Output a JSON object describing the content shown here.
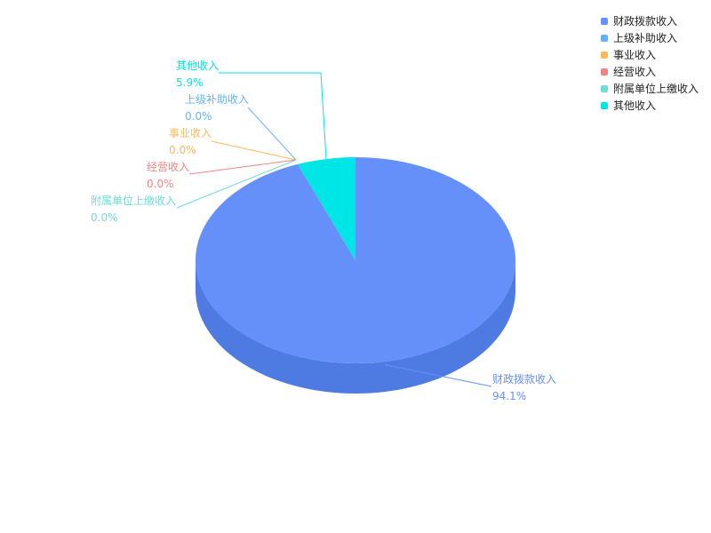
{
  "chart_data": {
    "type": "pie",
    "style": "3d",
    "categories": [
      "财政拨款收入",
      "上级补助收入",
      "事业收入",
      "经营收入",
      "附属单位上缴收入",
      "其他收入"
    ],
    "values_percent": [
      94.1,
      0.0,
      0.0,
      0.0,
      0.0,
      5.9
    ],
    "labels": [
      "94.1%",
      "0.0%",
      "0.0%",
      "0.0%",
      "0.0%",
      "5.9%"
    ],
    "colors": [
      "#6690f9",
      "#62b4fb",
      "#fdb95c",
      "#f08585",
      "#6edcd8",
      "#00e6e6"
    ],
    "side_color": "#4e7be2",
    "legend_position": "top-right"
  }
}
